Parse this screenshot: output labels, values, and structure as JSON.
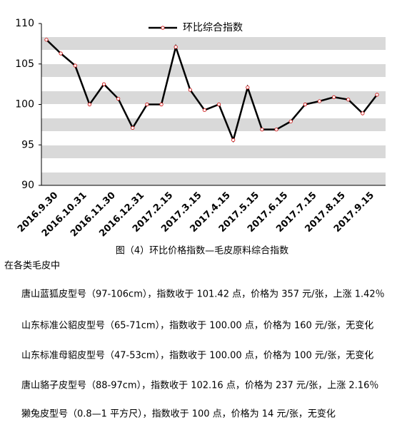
{
  "chart_data": {
    "type": "line",
    "categories": [
      "2016.9.30",
      null,
      "2016.10.31",
      null,
      "2016.11.30",
      null,
      "2016.12.31",
      null,
      "2017.2.15",
      null,
      "2017.3.15",
      null,
      "2017.4.15",
      null,
      "2017.5.15",
      null,
      "2017.6.15",
      null,
      "2017.7.15",
      null,
      "2017.8.15",
      null,
      "2017.9.15",
      null
    ],
    "series": [
      {
        "name": "环比综合指数",
        "color": "#000000",
        "marker_color": "#cc0000",
        "values": [
          108,
          106.3,
          104.8,
          100,
          102.5,
          100.7,
          97.1,
          100,
          100,
          107.1,
          101.8,
          99.3,
          100,
          95.6,
          102.1,
          96.9,
          96.9,
          97.9,
          100,
          100.4,
          100.9,
          100.6,
          98.9,
          101.2
        ]
      }
    ],
    "ylim": [
      90,
      110
    ],
    "yticks": [
      90,
      95,
      100,
      105,
      110
    ],
    "legend": "top"
  },
  "text": {
    "caption": "图（4）环比价格指数—毛皮原料综合指数",
    "intro": "在各类毛皮中",
    "items": [
      "唐山蓝狐皮型号（97-106cm），指数收于 101.42 点，价格为 357 元/张，上涨 1.42％",
      "山东标准公貂皮型号（65-71cm），指数收于 100.00 点，价格为 160 元/张，无变化",
      "山东标准母貂皮型号（47-53cm），指数收于 100.00 点，价格为 100 元/张，无变化",
      "唐山貉子皮型号（88-97cm），指数收于 102.16 点，价格为 237 元/张，上涨 2.16％",
      "獭兔皮型号（0.8—1 平方尺），指数收于 100 点，价格为 14 元/张，无变化"
    ]
  }
}
